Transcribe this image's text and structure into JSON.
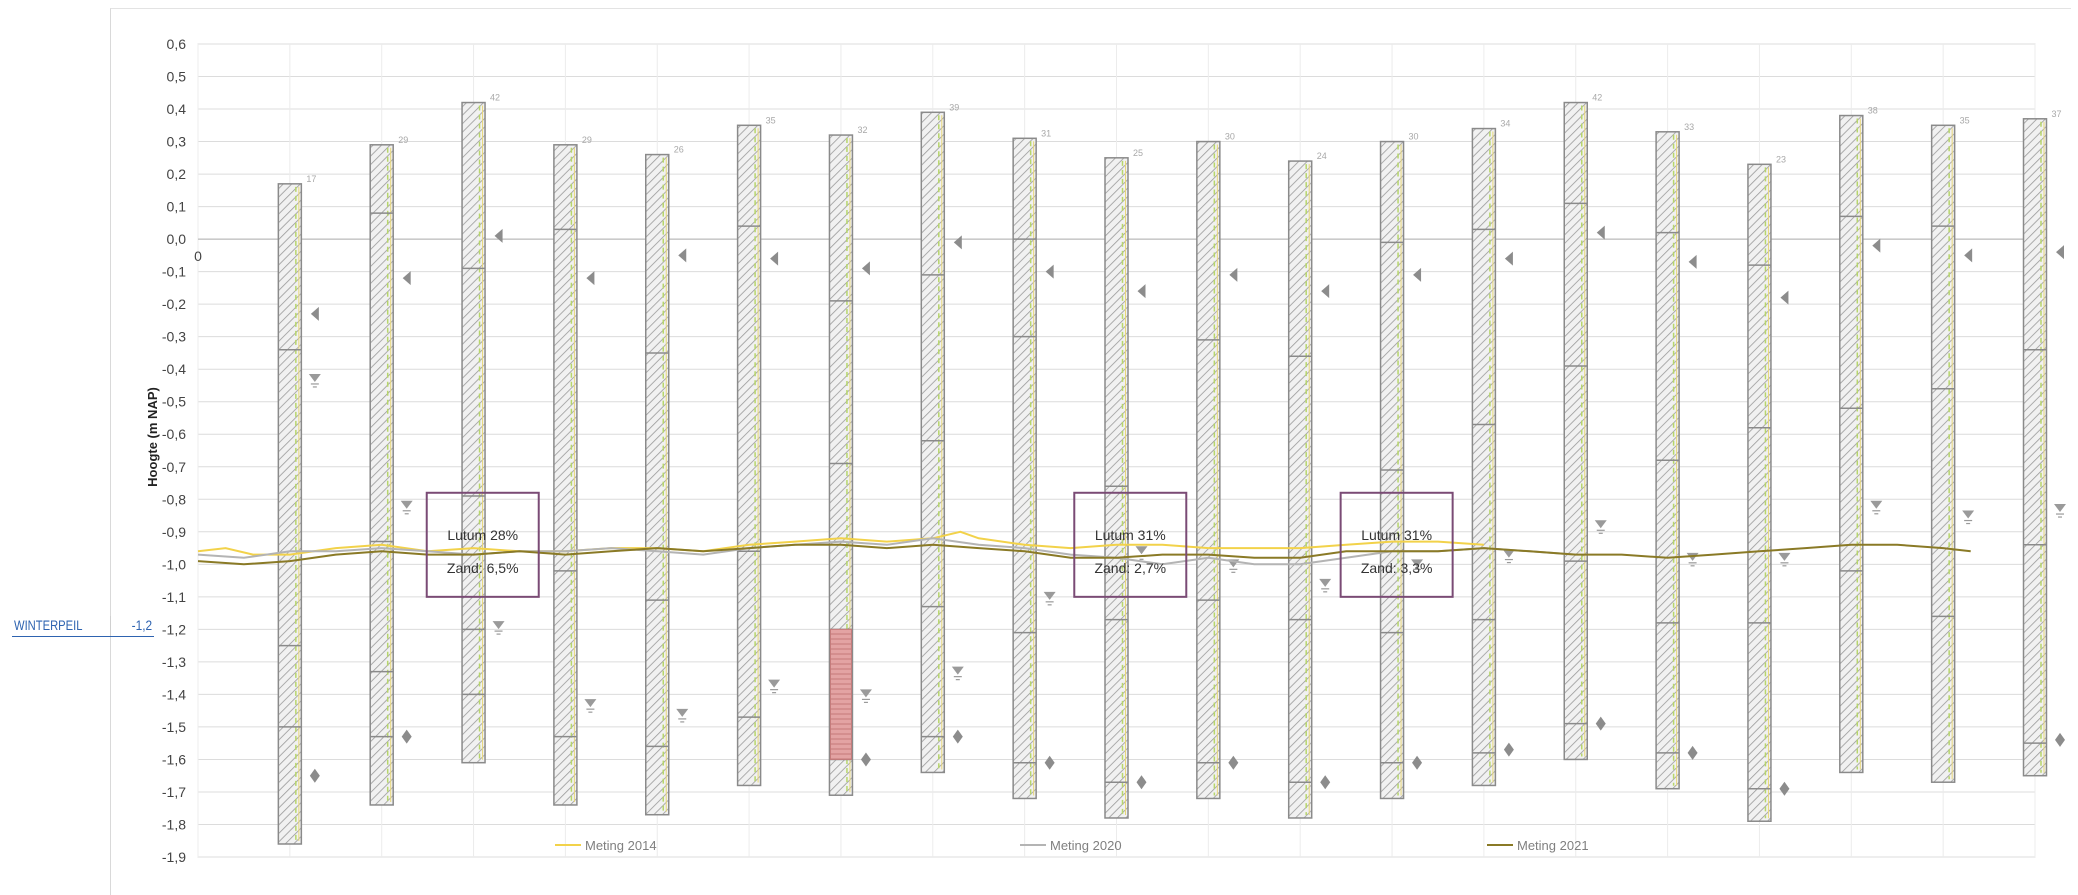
{
  "winterpeil": {
    "label": "WINTERPEIL",
    "value": "-1,2"
  },
  "chart_data": {
    "type": "line",
    "title": "",
    "ylabel": "Hoogte (m NAP)",
    "xlabel": "",
    "xlim": [
      0,
      200
    ],
    "ylim": [
      -1.9,
      0.6
    ],
    "x_ticks": [
      "0",
      "10",
      "20",
      "30",
      "40",
      "50",
      "60",
      "70",
      "80",
      "90",
      "100",
      "110",
      "120",
      "130",
      "140",
      "150",
      "160",
      "170",
      "180",
      "190",
      "200"
    ],
    "y_ticks": [
      "0,6",
      "0,5",
      "0,4",
      "0,3",
      "0,2",
      "0,1",
      "0,0",
      "-0,1",
      "-0,2",
      "-0,3",
      "-0,4",
      "-0,5",
      "-0,6",
      "-0,7",
      "-0,8",
      "-0,9",
      "-1,0",
      "-1,1",
      "-1,2",
      "-1,3",
      "-1,4",
      "-1,5",
      "-1,6",
      "-1,7",
      "-1,8",
      "-1,9"
    ],
    "grid": true,
    "legend_position": "bottom",
    "series": [
      {
        "name": "Meting 2014",
        "color": "#f2d24a",
        "x": [
          0,
          3,
          6,
          10,
          15,
          20,
          25,
          30,
          35,
          40,
          45,
          50,
          55,
          60,
          65,
          70,
          75,
          80,
          83,
          85,
          90,
          95,
          100,
          105,
          110,
          115,
          120,
          125,
          130,
          135,
          140
        ],
        "y": [
          -0.96,
          -0.95,
          -0.97,
          -0.97,
          -0.95,
          -0.94,
          -0.96,
          -0.95,
          -0.96,
          -0.96,
          -0.95,
          -0.95,
          -0.96,
          -0.94,
          -0.93,
          -0.92,
          -0.93,
          -0.92,
          -0.9,
          -0.92,
          -0.94,
          -0.95,
          -0.94,
          -0.94,
          -0.95,
          -0.95,
          -0.95,
          -0.94,
          -0.93,
          -0.93,
          -0.94
        ]
      },
      {
        "name": "Meting 2020",
        "color": "#b4b4b4",
        "x": [
          0,
          5,
          10,
          15,
          20,
          25,
          30,
          35,
          40,
          45,
          50,
          55,
          60,
          65,
          70,
          75,
          80,
          85,
          90,
          95,
          100,
          105,
          110,
          115,
          120,
          125,
          130,
          135,
          140,
          145,
          150
        ],
        "y": [
          -0.97,
          -0.98,
          -0.96,
          -0.96,
          -0.95,
          -0.96,
          -0.97,
          -0.96,
          -0.96,
          -0.95,
          -0.96,
          -0.97,
          -0.95,
          -0.94,
          -0.93,
          -0.94,
          -0.92,
          -0.94,
          -0.95,
          -0.97,
          -0.98,
          -1.0,
          -0.98,
          -1.0,
          -1.0,
          -0.98,
          -0.96,
          -0.96,
          -0.95,
          -0.96,
          -0.97
        ]
      },
      {
        "name": "Meting 2021",
        "color": "#8a7a26",
        "x": [
          0,
          5,
          10,
          15,
          20,
          25,
          30,
          35,
          40,
          45,
          50,
          55,
          60,
          65,
          70,
          75,
          80,
          85,
          90,
          95,
          100,
          105,
          110,
          115,
          120,
          125,
          130,
          135,
          140,
          145,
          150,
          155,
          160,
          165,
          170,
          175,
          180,
          185,
          190,
          193
        ],
        "y": [
          -0.99,
          -1.0,
          -0.99,
          -0.97,
          -0.96,
          -0.97,
          -0.97,
          -0.96,
          -0.97,
          -0.96,
          -0.95,
          -0.96,
          -0.95,
          -0.94,
          -0.94,
          -0.95,
          -0.94,
          -0.95,
          -0.96,
          -0.98,
          -0.98,
          -0.97,
          -0.97,
          -0.98,
          -0.98,
          -0.96,
          -0.96,
          -0.96,
          -0.95,
          -0.96,
          -0.97,
          -0.97,
          -0.98,
          -0.97,
          -0.96,
          -0.95,
          -0.94,
          -0.94,
          -0.95,
          -0.96
        ]
      }
    ],
    "annotations": [
      {
        "line1": "Lutum 28%",
        "line2": "Zand: 6,5%",
        "x_center": 31
      },
      {
        "line1": "Lutum 31%",
        "line2": "Zand: 2,7%",
        "x_center": 101.5
      },
      {
        "line1": "Lutum 31%",
        "line2": "Zand: 3,3%",
        "x_center": 130.5
      }
    ],
    "borings": [
      {
        "x": 10,
        "top": 0.17,
        "bottom": -1.86,
        "label": "17",
        "bounds": [
          -0.34,
          -1.25,
          -1.5
        ]
      },
      {
        "x": 20,
        "top": 0.29,
        "bottom": -1.74,
        "label": "29",
        "bounds": [
          0.08,
          -0.93,
          -1.33,
          -1.53
        ]
      },
      {
        "x": 30,
        "top": 0.42,
        "bottom": -1.61,
        "label": "42",
        "bounds": [
          -0.09,
          -0.79,
          -1.2,
          -1.4
        ]
      },
      {
        "x": 40,
        "top": 0.29,
        "bottom": -1.74,
        "label": "29",
        "bounds": [
          0.03,
          -1.02,
          -1.53
        ]
      },
      {
        "x": 50,
        "top": 0.26,
        "bottom": -1.77,
        "label": "26",
        "bounds": [
          -0.35,
          -1.11,
          -1.56
        ]
      },
      {
        "x": 60,
        "top": 0.35,
        "bottom": -1.68,
        "label": "35",
        "bounds": [
          0.04,
          -0.96,
          -1.47
        ]
      },
      {
        "x": 70,
        "top": 0.32,
        "bottom": -1.71,
        "label": "32",
        "bounds": [
          -0.19,
          -0.69,
          -1.2,
          -1.6
        ]
      },
      {
        "x": 80,
        "top": 0.39,
        "bottom": -1.64,
        "label": "39",
        "bounds": [
          -0.11,
          -0.62,
          -1.13,
          -1.53
        ]
      },
      {
        "x": 90,
        "top": 0.31,
        "bottom": -1.72,
        "label": "31",
        "bounds": [
          0.0,
          -0.3,
          -1.21,
          -1.61
        ]
      },
      {
        "x": 100,
        "top": 0.25,
        "bottom": -1.78,
        "label": "25",
        "bounds": [
          -0.76,
          -1.17,
          -1.67
        ]
      },
      {
        "x": 110,
        "top": 0.3,
        "bottom": -1.72,
        "label": "30",
        "bounds": [
          -0.31,
          -1.11,
          -1.61
        ]
      },
      {
        "x": 120,
        "top": 0.24,
        "bottom": -1.78,
        "label": "24",
        "bounds": [
          -0.36,
          -1.17,
          -1.67
        ]
      },
      {
        "x": 130,
        "top": 0.3,
        "bottom": -1.72,
        "label": "30",
        "bounds": [
          -0.01,
          -0.71,
          -1.21,
          -1.61
        ]
      },
      {
        "x": 140,
        "top": 0.34,
        "bottom": -1.68,
        "label": "34",
        "bounds": [
          0.03,
          -0.57,
          -1.17,
          -1.58
        ]
      },
      {
        "x": 150,
        "top": 0.42,
        "bottom": -1.6,
        "label": "42",
        "bounds": [
          0.11,
          -0.39,
          -0.99,
          -1.49
        ]
      },
      {
        "x": 160,
        "top": 0.33,
        "bottom": -1.69,
        "label": "33",
        "bounds": [
          0.02,
          -0.68,
          -1.18,
          -1.58
        ]
      },
      {
        "x": 170,
        "top": 0.23,
        "bottom": -1.79,
        "label": "23",
        "bounds": [
          -0.08,
          -0.58,
          -1.18,
          -1.69
        ]
      },
      {
        "x": 180,
        "top": 0.38,
        "bottom": -1.64,
        "label": "38",
        "bounds": [
          0.07,
          -0.52,
          -1.02
        ]
      },
      {
        "x": 190,
        "top": 0.35,
        "bottom": -1.67,
        "label": "35",
        "bounds": [
          0.04,
          -0.46,
          -1.16
        ]
      },
      {
        "x": 200,
        "top": 0.37,
        "bottom": -1.65,
        "label": "37",
        "bounds": [
          -0.34,
          -0.94,
          -1.55
        ]
      }
    ],
    "peat_layer": {
      "x": 70,
      "top": -1.2,
      "bottom": -1.6
    },
    "water_marks": [
      {
        "x": 10,
        "upper": -0.23,
        "gw": -0.43,
        "lower": -1.65
      },
      {
        "x": 20,
        "upper": -0.12,
        "gw": -0.82,
        "lower": -1.53
      },
      {
        "x": 30,
        "upper": 0.01,
        "gw": -1.19,
        "lower": null
      },
      {
        "x": 40,
        "upper": -0.12,
        "gw": -1.43,
        "lower": null
      },
      {
        "x": 50,
        "upper": -0.05,
        "gw": -1.46,
        "lower": null
      },
      {
        "x": 60,
        "upper": -0.06,
        "gw": -1.37,
        "lower": null
      },
      {
        "x": 70,
        "upper": -0.09,
        "gw": -1.4,
        "lower": -1.6
      },
      {
        "x": 80,
        "upper": -0.01,
        "gw": -1.33,
        "lower": -1.53
      },
      {
        "x": 90,
        "upper": -0.1,
        "gw": -1.1,
        "lower": -1.61
      },
      {
        "x": 100,
        "upper": -0.16,
        "gw": -0.96,
        "lower": -1.67
      },
      {
        "x": 110,
        "upper": -0.11,
        "gw": -1.0,
        "lower": -1.61
      },
      {
        "x": 120,
        "upper": -0.16,
        "gw": -1.06,
        "lower": -1.67
      },
      {
        "x": 130,
        "upper": -0.11,
        "gw": -1.0,
        "lower": -1.61
      },
      {
        "x": 140,
        "upper": -0.06,
        "gw": -0.97,
        "lower": -1.57
      },
      {
        "x": 150,
        "upper": 0.02,
        "gw": -0.88,
        "lower": -1.49
      },
      {
        "x": 160,
        "upper": -0.07,
        "gw": -0.98,
        "lower": -1.58
      },
      {
        "x": 170,
        "upper": -0.18,
        "gw": -0.98,
        "lower": -1.69
      },
      {
        "x": 180,
        "upper": -0.02,
        "gw": -0.82,
        "lower": null
      },
      {
        "x": 190,
        "upper": -0.05,
        "gw": -0.85,
        "lower": null
      },
      {
        "x": 200,
        "upper": -0.04,
        "gw": -0.83,
        "lower": -1.54
      }
    ]
  }
}
